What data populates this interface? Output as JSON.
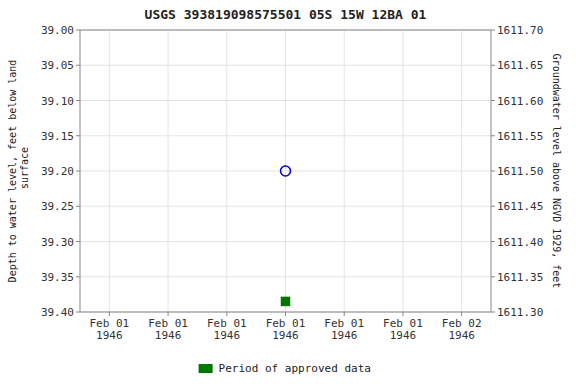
{
  "chart_data": {
    "type": "scatter",
    "title": "USGS 393819098575501 05S 15W 12BA  01",
    "y_label": "Depth to water level, feet below land\n surface",
    "y2_label": "Groundwater level above NGVD 1929, feet",
    "categories": [
      "Feb 01\n1946",
      "Feb 01\n1946",
      "Feb 01\n1946",
      "Feb 01\n1946",
      "Feb 01\n1946",
      "Feb 01\n1946",
      "Feb 02\n1946"
    ],
    "series": [
      {
        "color": "#0000cc",
        "marker": "open-circle",
        "values": [
          null,
          null,
          null,
          39.2,
          null,
          null,
          null
        ]
      },
      {
        "name": "Period of approved data",
        "color": "#007700",
        "marker": "square",
        "values": [
          null,
          null,
          null,
          39.385,
          null,
          null,
          null
        ]
      }
    ],
    "ylim": [
      39.4,
      39.0
    ],
    "yticks": [
      {
        "value": 39.0,
        "label": "39.00"
      },
      39.05,
      {
        "value": 39.1,
        "label": "39.10"
      },
      39.15,
      {
        "value": 39.2,
        "label": "39.20"
      },
      39.25,
      {
        "value": 39.3,
        "label": "39.30"
      },
      39.35,
      {
        "value": 39.4,
        "label": "39.40"
      }
    ],
    "y2lim": [
      1611.3,
      1611.7
    ],
    "y2ticks": [
      {
        "value": 1611.3,
        "label": "1611.30"
      },
      1611.35,
      {
        "value": 1611.4,
        "label": "1611.40"
      },
      1611.45,
      {
        "value": 1611.5,
        "label": "1611.50"
      },
      1611.55,
      {
        "value": 1611.6,
        "label": "1611.60"
      },
      1611.65,
      {
        "value": 1611.7,
        "label": "1611.70"
      }
    ],
    "grid": true,
    "legend": "bottom"
  }
}
